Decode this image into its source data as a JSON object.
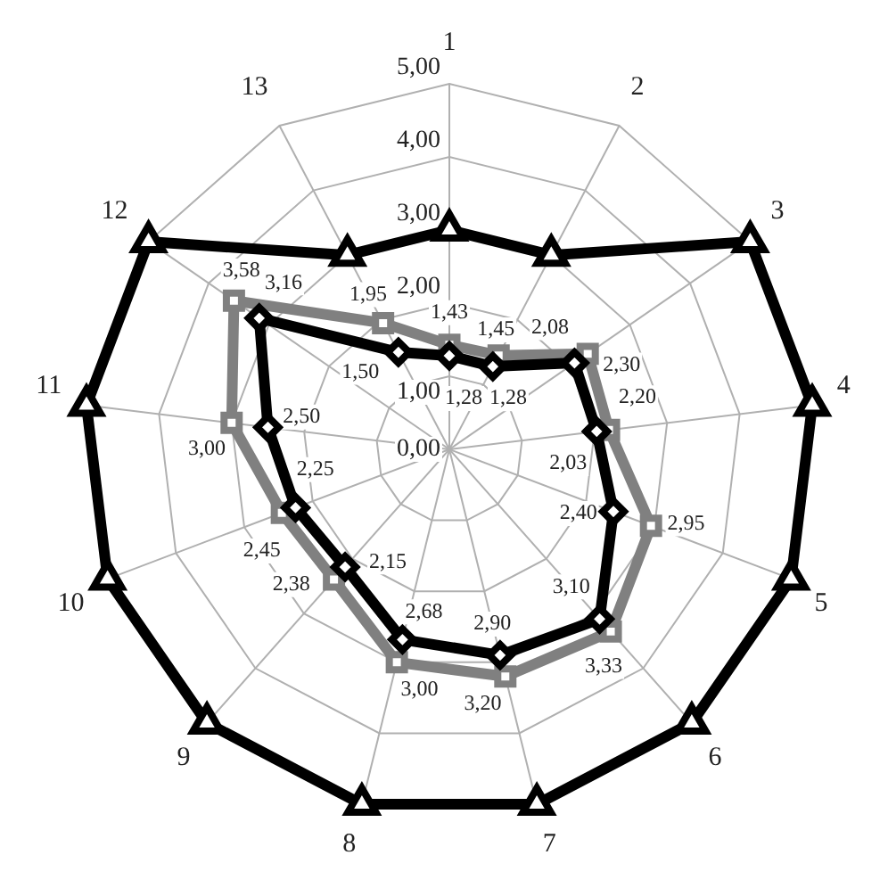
{
  "chart_data": {
    "type": "radar",
    "categories": [
      "1",
      "2",
      "3",
      "4",
      "5",
      "6",
      "7",
      "8",
      "9",
      "10",
      "11",
      "12",
      "13"
    ],
    "ylim": [
      0,
      5
    ],
    "yticks": [
      {
        "value": 0,
        "label": "0,00"
      },
      {
        "value": 1,
        "label": "1,00"
      },
      {
        "value": 2,
        "label": "2,00"
      },
      {
        "value": 3,
        "label": "3,00"
      },
      {
        "value": 4,
        "label": "4,00"
      },
      {
        "value": 5,
        "label": "5,00"
      }
    ],
    "grid": true,
    "legend": false,
    "line_style": "solid",
    "series": [
      {
        "color": "#000000",
        "marker": "triangle",
        "values": [
          3,
          3,
          5,
          5,
          5,
          5,
          5,
          5,
          5,
          5,
          5,
          5,
          3
        ]
      },
      {
        "color": "#000000",
        "marker": "diamond",
        "values": [
          1.28,
          1.28,
          2.08,
          2.03,
          2.4,
          3.1,
          2.9,
          2.68,
          2.15,
          2.25,
          2.5,
          3.16,
          1.5
        ],
        "value_labels": [
          "1,28",
          "1,28",
          "2,08",
          "2,03",
          "2,40",
          "3,10",
          "2,90",
          "2,68",
          "2,15",
          "2,25",
          "2,50",
          "3,16",
          "1,50"
        ]
      },
      {
        "color": "#808080",
        "marker": "square",
        "values": [
          1.43,
          1.45,
          2.3,
          2.2,
          2.95,
          3.33,
          3.2,
          3.0,
          2.38,
          2.45,
          3.0,
          3.58,
          1.95
        ],
        "value_labels": [
          "1,43",
          "1,45",
          "2,30",
          "2,20",
          "2,95",
          "3,33",
          "3,20",
          "3,00",
          "2,38",
          "2,45",
          "3,00",
          "3,58",
          "1,95"
        ]
      }
    ]
  }
}
